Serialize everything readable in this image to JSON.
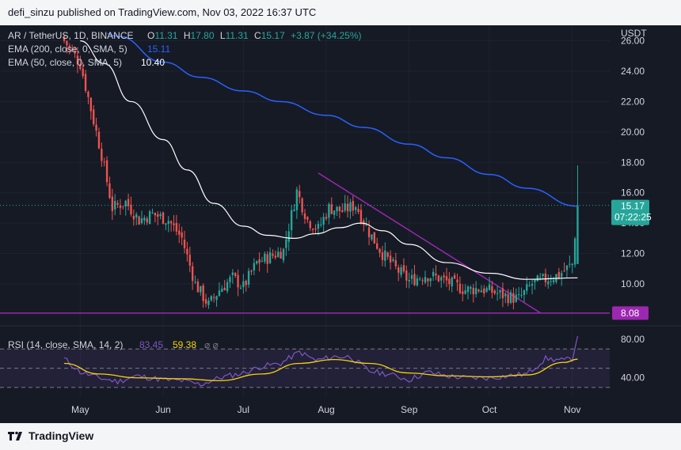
{
  "header": {
    "publisher_text": "defi_sinzu published on TradingView.com, Nov 03, 2022 16:37 UTC"
  },
  "footer": {
    "brand": "TradingView",
    "logo_icon": "tradingview-logo-icon"
  },
  "legend": {
    "symbol": "AR / TetherUS, 1D, BINANCE",
    "o_label": "O",
    "o_value": "11.31",
    "h_label": "H",
    "h_value": "17.80",
    "l_label": "L",
    "l_value": "11.31",
    "c_label": "C",
    "c_value": "15.17",
    "change": "+3.87 (+34.25%)",
    "ema200_label": "EMA (200, close, 0, SMA, 5)",
    "ema200_value": "15.11",
    "ema50_label": "EMA (50, close, 0, SMA, 5)",
    "ema50_value": "10.40",
    "rsi_label": "RSI (14, close, SMA, 14, 2)",
    "rsi_value": "83.45",
    "rsi_sma_value": "59.38",
    "rsi_extra": "⌀ ⌀"
  },
  "price_axis": {
    "unit": "USDT",
    "ticks": [
      "26.00",
      "24.00",
      "22.00",
      "20.00",
      "18.00",
      "16.00",
      "14.00",
      "12.00",
      "10.00"
    ],
    "current_price_label": "15.17",
    "countdown_label": "07:22:25",
    "support_label": "8.08"
  },
  "rsi_axis": {
    "ticks": [
      "80.00",
      "40.00"
    ]
  },
  "time_axis": {
    "labels": [
      "May",
      "Jun",
      "Jul",
      "Aug",
      "Sep",
      "Oct",
      "Nov"
    ]
  },
  "colors": {
    "up": "#26a69a",
    "down": "#ef5350",
    "ema200": "#2962ff",
    "ema50": "#ffffff",
    "trendline": "#9c27b0",
    "rsi": "#7e57c2",
    "rsi_sma": "#f5d20e",
    "background": "#161a25"
  },
  "chart_data": [
    {
      "type": "candlestick",
      "title": "AR / TetherUS, 1D, BINANCE",
      "ylabel": "USDT",
      "ylim": [
        7.5,
        26.5
      ],
      "x_labels": [
        "May",
        "Jun",
        "Jul",
        "Aug",
        "Sep",
        "Oct",
        "Nov"
      ],
      "anchors_close": [
        [
          "2022-04-25",
          26.0
        ],
        [
          "2022-05-01",
          24.5
        ],
        [
          "2022-05-05",
          21.5
        ],
        [
          "2022-05-09",
          18.5
        ],
        [
          "2022-05-13",
          15.0
        ],
        [
          "2022-05-18",
          15.4
        ],
        [
          "2022-05-23",
          14.2
        ],
        [
          "2022-05-28",
          14.6
        ],
        [
          "2022-06-03",
          14.2
        ],
        [
          "2022-06-08",
          13.0
        ],
        [
          "2022-06-13",
          10.0
        ],
        [
          "2022-06-18",
          8.6
        ],
        [
          "2022-06-22",
          9.6
        ],
        [
          "2022-06-27",
          10.4
        ],
        [
          "2022-07-01",
          9.8
        ],
        [
          "2022-07-06",
          11.4
        ],
        [
          "2022-07-11",
          11.8
        ],
        [
          "2022-07-16",
          12.2
        ],
        [
          "2022-07-21",
          16.1
        ],
        [
          "2022-07-25",
          14.2
        ],
        [
          "2022-07-29",
          13.6
        ],
        [
          "2022-08-02",
          15.0
        ],
        [
          "2022-08-07",
          14.8
        ],
        [
          "2022-08-12",
          15.2
        ],
        [
          "2022-08-17",
          13.4
        ],
        [
          "2022-08-22",
          12.0
        ],
        [
          "2022-08-27",
          11.0
        ],
        [
          "2022-09-01",
          10.2
        ],
        [
          "2022-09-07",
          10.6
        ],
        [
          "2022-09-12",
          10.4
        ],
        [
          "2022-09-17",
          10.0
        ],
        [
          "2022-09-22",
          9.6
        ],
        [
          "2022-09-27",
          9.7
        ],
        [
          "2022-10-02",
          9.5
        ],
        [
          "2022-10-07",
          9.2
        ],
        [
          "2022-10-12",
          9.0
        ],
        [
          "2022-10-17",
          10.0
        ],
        [
          "2022-10-22",
          10.3
        ],
        [
          "2022-10-27",
          10.6
        ],
        [
          "2022-11-01",
          11.3
        ],
        [
          "2022-11-03",
          15.17
        ]
      ],
      "ema200": [
        [
          "2022-05-01",
          28.0
        ],
        [
          "2022-05-15",
          26.3
        ],
        [
          "2022-06-01",
          24.6
        ],
        [
          "2022-06-15",
          23.6
        ],
        [
          "2022-07-01",
          22.7
        ],
        [
          "2022-07-15",
          22.0
        ],
        [
          "2022-08-01",
          21.1
        ],
        [
          "2022-08-15",
          20.3
        ],
        [
          "2022-09-01",
          19.2
        ],
        [
          "2022-09-15",
          18.3
        ],
        [
          "2022-10-01",
          17.2
        ],
        [
          "2022-10-15",
          16.3
        ],
        [
          "2022-11-03",
          15.11
        ]
      ],
      "ema50": [
        [
          "2022-05-01",
          26.0
        ],
        [
          "2022-05-10",
          24.5
        ],
        [
          "2022-05-20",
          22.0
        ],
        [
          "2022-06-01",
          19.5
        ],
        [
          "2022-06-10",
          17.5
        ],
        [
          "2022-06-20",
          15.3
        ],
        [
          "2022-07-01",
          13.8
        ],
        [
          "2022-07-10",
          13.2
        ],
        [
          "2022-07-20",
          13.0
        ],
        [
          "2022-07-28",
          13.3
        ],
        [
          "2022-08-06",
          13.7
        ],
        [
          "2022-08-14",
          14.0
        ],
        [
          "2022-08-22",
          13.5
        ],
        [
          "2022-09-01",
          12.6
        ],
        [
          "2022-09-15",
          11.4
        ],
        [
          "2022-10-01",
          10.7
        ],
        [
          "2022-10-15",
          10.3
        ],
        [
          "2022-11-03",
          10.4
        ]
      ],
      "trendline": [
        [
          "2022-07-29",
          17.3
        ],
        [
          "2022-10-20",
          8.1
        ]
      ],
      "support_level": 8.08,
      "last": {
        "o": 11.31,
        "h": 17.8,
        "l": 11.31,
        "c": 15.17
      }
    },
    {
      "type": "line",
      "title": "RSI (14, close, SMA, 14, 2)",
      "ylim": [
        20,
        90
      ],
      "bands": [
        30,
        50,
        70
      ],
      "x_labels": [
        "May",
        "Jun",
        "Jul",
        "Aug",
        "Sep",
        "Oct",
        "Nov"
      ],
      "series": [
        {
          "name": "RSI",
          "values": [
            [
              "2022-04-25",
              60
            ],
            [
              "2022-05-01",
              46
            ],
            [
              "2022-05-08",
              40
            ],
            [
              "2022-05-15",
              36
            ],
            [
              "2022-05-22",
              42
            ],
            [
              "2022-06-01",
              38
            ],
            [
              "2022-06-08",
              37
            ],
            [
              "2022-06-15",
              33
            ],
            [
              "2022-06-22",
              40
            ],
            [
              "2022-07-01",
              45
            ],
            [
              "2022-07-08",
              52
            ],
            [
              "2022-07-15",
              55
            ],
            [
              "2022-07-22",
              67
            ],
            [
              "2022-07-28",
              58
            ],
            [
              "2022-08-04",
              62
            ],
            [
              "2022-08-10",
              62
            ],
            [
              "2022-08-17",
              47
            ],
            [
              "2022-08-24",
              44
            ],
            [
              "2022-09-01",
              38
            ],
            [
              "2022-09-08",
              46
            ],
            [
              "2022-09-15",
              42
            ],
            [
              "2022-09-22",
              40
            ],
            [
              "2022-10-01",
              40
            ],
            [
              "2022-10-08",
              42
            ],
            [
              "2022-10-15",
              44
            ],
            [
              "2022-10-22",
              60
            ],
            [
              "2022-10-29",
              58
            ],
            [
              "2022-11-01",
              60
            ],
            [
              "2022-11-03",
              83.45
            ]
          ]
        },
        {
          "name": "RSI-based MA",
          "values": [
            [
              "2022-04-25",
              55
            ],
            [
              "2022-05-08",
              44
            ],
            [
              "2022-05-22",
              40
            ],
            [
              "2022-06-08",
              39
            ],
            [
              "2022-06-22",
              37
            ],
            [
              "2022-07-08",
              44
            ],
            [
              "2022-07-22",
              55
            ],
            [
              "2022-08-04",
              59
            ],
            [
              "2022-08-17",
              55
            ],
            [
              "2022-09-01",
              45
            ],
            [
              "2022-09-15",
              42
            ],
            [
              "2022-10-01",
              41
            ],
            [
              "2022-10-15",
              43
            ],
            [
              "2022-10-29",
              56
            ],
            [
              "2022-11-03",
              59.38
            ]
          ]
        }
      ]
    }
  ]
}
